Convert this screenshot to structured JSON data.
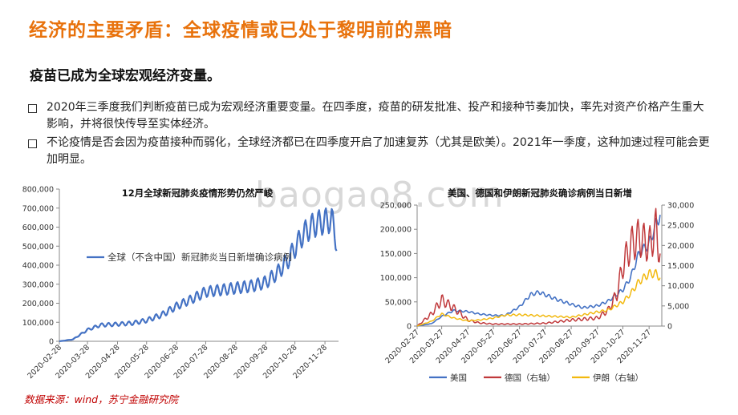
{
  "page": {
    "title": "经济的主要矛盾：全球疫情或已处于黎明前的黑暗",
    "subtitle": "疫苗已成为全球宏观经济变量。",
    "bullets": [
      "2020年三季度我们判断疫苗已成为宏观经济重要变量。在四季度，疫苗的研发批准、投产和接种节奏加快，率先对资产价格产生重大影响，并将很快传导至实体经济。",
      "不论疫情是否会因为疫苗接种而弱化，全球经济都已在四季度开启了加速复苏（尤其是欧美）。2021年一季度，这种加速过程可能会更加明显。"
    ],
    "source": "数据来源：wind，苏宁金融研究院",
    "watermark": "baogao8.com"
  },
  "chart_data": [
    {
      "type": "line",
      "title": "12月全球新冠肺炎疫情形势仍然严峻",
      "ylim": [
        0,
        800000
      ],
      "yticks": [
        "0",
        "100,000",
        "200,000",
        "300,000",
        "400,000",
        "500,000",
        "600,000",
        "700,000",
        "800,000"
      ],
      "xticks": [
        "2020-02-28",
        "2020-03-28",
        "2020-04-28",
        "2020-05-28",
        "2020-06-28",
        "2020-07-28",
        "2020-08-28",
        "2020-09-28",
        "2020-10-28",
        "2020-11-28"
      ],
      "series": [
        {
          "name": "全球（不含中国）新冠肺炎当日新增确诊病例",
          "color": "#4472c4",
          "x": [
            "2020-02-28",
            "2020-03-13",
            "2020-03-28",
            "2020-04-10",
            "2020-04-28",
            "2020-05-13",
            "2020-05-28",
            "2020-06-13",
            "2020-06-28",
            "2020-07-13",
            "2020-07-28",
            "2020-08-13",
            "2020-08-28",
            "2020-09-13",
            "2020-09-28",
            "2020-10-10",
            "2020-10-20",
            "2020-10-28",
            "2020-11-05",
            "2020-11-13",
            "2020-11-20",
            "2020-11-28",
            "2020-12-05",
            "2020-12-10"
          ],
          "values": [
            0,
            10000,
            60000,
            85000,
            90000,
            95000,
            110000,
            140000,
            185000,
            220000,
            260000,
            270000,
            280000,
            290000,
            310000,
            360000,
            420000,
            490000,
            560000,
            600000,
            620000,
            630000,
            640000,
            520000
          ]
        }
      ]
    },
    {
      "type": "line",
      "title": "美国、德国和伊朗新冠肺炎确诊病例当日新增",
      "ylim": [
        0,
        250000
      ],
      "ylim_right": [
        0,
        30000
      ],
      "yticks": [
        "0",
        "50,000",
        "100,000",
        "150,000",
        "200,000",
        "250,000"
      ],
      "yticks_right": [
        "0",
        "5,000",
        "10,000",
        "15,000",
        "20,000",
        "25,000",
        "30,000"
      ],
      "xticks": [
        "2020-02-27",
        "2020-03-27",
        "2020-04-27",
        "2020-05-27",
        "2020-06-27",
        "2020-07-27",
        "2020-08-27",
        "2020-09-27",
        "2020-10-27",
        "2020-11-27"
      ],
      "series": [
        {
          "name": "美国",
          "axis": "left",
          "color": "#4472c4",
          "x": [
            "2020-02-27",
            "2020-03-15",
            "2020-03-27",
            "2020-04-10",
            "2020-04-27",
            "2020-05-10",
            "2020-05-27",
            "2020-06-10",
            "2020-06-27",
            "2020-07-10",
            "2020-07-20",
            "2020-07-27",
            "2020-08-10",
            "2020-08-27",
            "2020-09-10",
            "2020-09-27",
            "2020-10-10",
            "2020-10-27",
            "2020-11-05",
            "2020-11-15",
            "2020-11-27",
            "2020-12-05",
            "2020-12-10"
          ],
          "values": [
            0,
            5000,
            20000,
            32000,
            30000,
            25000,
            22000,
            22000,
            40000,
            65000,
            70000,
            65000,
            55000,
            45000,
            38000,
            42000,
            52000,
            75000,
            100000,
            150000,
            170000,
            210000,
            230000
          ]
        },
        {
          "name": "德国（右轴）",
          "axis": "right",
          "color": "#c0393b",
          "x": [
            "2020-02-27",
            "2020-03-15",
            "2020-03-27",
            "2020-04-10",
            "2020-04-27",
            "2020-05-10",
            "2020-05-27",
            "2020-06-27",
            "2020-07-27",
            "2020-08-27",
            "2020-09-27",
            "2020-10-10",
            "2020-10-20",
            "2020-10-27",
            "2020-11-05",
            "2020-11-15",
            "2020-11-27",
            "2020-12-05",
            "2020-12-10"
          ],
          "values": [
            0,
            3000,
            6500,
            4500,
            1500,
            800,
            500,
            500,
            700,
            1500,
            2000,
            4000,
            8000,
            15000,
            20000,
            22000,
            20000,
            24000,
            18000
          ]
        },
        {
          "name": "伊朗（右轴）",
          "axis": "right",
          "color": "#f2b90f",
          "x": [
            "2020-02-27",
            "2020-03-15",
            "2020-03-27",
            "2020-04-10",
            "2020-04-27",
            "2020-05-10",
            "2020-05-27",
            "2020-06-10",
            "2020-06-27",
            "2020-07-27",
            "2020-08-27",
            "2020-09-27",
            "2020-10-10",
            "2020-10-27",
            "2020-11-05",
            "2020-11-15",
            "2020-11-27",
            "2020-12-05",
            "2020-12-10"
          ],
          "values": [
            0,
            1200,
            3000,
            2000,
            1300,
            1500,
            2000,
            2700,
            2800,
            2500,
            2200,
            3500,
            4000,
            6000,
            8000,
            11000,
            13000,
            13000,
            12000
          ]
        }
      ]
    }
  ]
}
